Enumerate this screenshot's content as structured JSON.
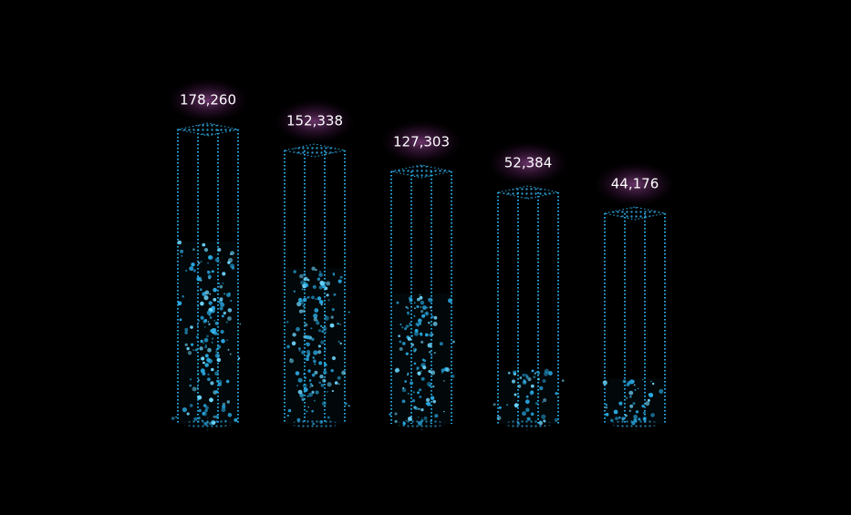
{
  "chart_data": {
    "type": "bar",
    "categories": [
      null,
      null,
      null,
      null,
      null
    ],
    "values": [
      178260,
      152338,
      127303,
      52384,
      44176
    ],
    "value_labels": [
      "178,260",
      "152,338",
      "127,303",
      "52,384",
      "44,176"
    ],
    "color": "#29a8e0"
  }
}
